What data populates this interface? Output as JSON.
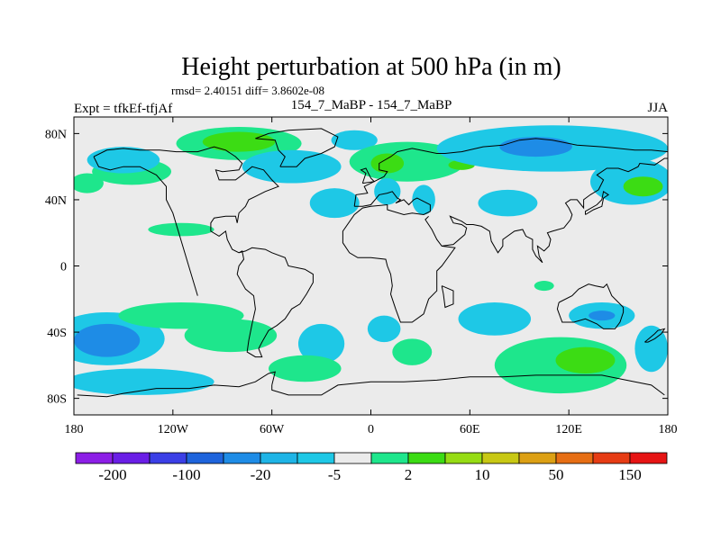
{
  "title": "Height perturbation at 500 hPa (in m)",
  "stats_line": "rmsd= 2.40151 diff= 3.8602e-08",
  "left_label": "Expt = tfkEf-tfjAf",
  "center_label": "154_7_MaBP - 154_7_MaBP",
  "right_label": "JJA",
  "projection": "cylindrical-equidistant",
  "lon_range": [
    -180,
    180
  ],
  "lat_range": [
    -90,
    90
  ],
  "x_ticks": [
    {
      "lon": -180,
      "label": "180"
    },
    {
      "lon": -120,
      "label": "120W"
    },
    {
      "lon": -60,
      "label": "60W"
    },
    {
      "lon": 0,
      "label": "0"
    },
    {
      "lon": 60,
      "label": "60E"
    },
    {
      "lon": 120,
      "label": "120E"
    },
    {
      "lon": 180,
      "label": "180"
    }
  ],
  "y_ticks": [
    {
      "lat": 80,
      "label": "80N"
    },
    {
      "lat": 40,
      "label": "40N"
    },
    {
      "lat": 0,
      "label": "0"
    },
    {
      "lat": -40,
      "label": "40S"
    },
    {
      "lat": -80,
      "label": "80S"
    }
  ],
  "colorbar": {
    "colors": [
      "#8c1ee6",
      "#6a1ee6",
      "#3b3fe6",
      "#1e64dc",
      "#1e8ce6",
      "#1eb4e6",
      "#1ec8e6",
      "#ebebeb",
      "#1ee68c",
      "#3cdc14",
      "#96dc14",
      "#c8c814",
      "#dca014",
      "#e66e14",
      "#e63c14",
      "#e61414"
    ],
    "labels": [
      {
        "after_box": 1,
        "text": "-200"
      },
      {
        "after_box": 3,
        "text": "-100"
      },
      {
        "after_box": 5,
        "text": "-20"
      },
      {
        "after_box": 7,
        "text": "-5"
      },
      {
        "after_box": 9,
        "text": "2"
      },
      {
        "after_box": 11,
        "text": "10"
      },
      {
        "after_box": 13,
        "text": "50"
      },
      {
        "after_box": 15,
        "text": "150"
      }
    ]
  },
  "field_colors": {
    "background": "#ebebeb",
    "weak_negative": "#1ec8e6",
    "weak_positive": "#1ee68c",
    "moderate_positive": "#3cdc14",
    "moderate_negative": "#1e8ce6",
    "coastline": "#000000"
  },
  "anomaly_regions": [
    {
      "level": "weak_positive",
      "lon": -145,
      "lat": 57,
      "rx_deg": 24,
      "ry_deg": 8
    },
    {
      "level": "weak_negative",
      "lon": -150,
      "lat": 64,
      "rx_deg": 22,
      "ry_deg": 8
    },
    {
      "level": "weak_positive",
      "lon": -80,
      "lat": 74,
      "rx_deg": 38,
      "ry_deg": 10
    },
    {
      "level": "moderate_positive",
      "lon": -80,
      "lat": 75,
      "rx_deg": 22,
      "ry_deg": 6
    },
    {
      "level": "weak_negative",
      "lon": -48,
      "lat": 60,
      "rx_deg": 30,
      "ry_deg": 10
    },
    {
      "level": "weak_negative",
      "lon": -10,
      "lat": 76,
      "rx_deg": 14,
      "ry_deg": 6
    },
    {
      "level": "weak_positive",
      "lon": 22,
      "lat": 63,
      "rx_deg": 35,
      "ry_deg": 12
    },
    {
      "level": "moderate_positive",
      "lon": 10,
      "lat": 62,
      "rx_deg": 10,
      "ry_deg": 6
    },
    {
      "level": "moderate_positive",
      "lon": 55,
      "lat": 61,
      "rx_deg": 8,
      "ry_deg": 3
    },
    {
      "level": "weak_negative",
      "lon": 110,
      "lat": 71,
      "rx_deg": 70,
      "ry_deg": 14
    },
    {
      "level": "moderate_negative",
      "lon": 100,
      "lat": 72,
      "rx_deg": 22,
      "ry_deg": 6
    },
    {
      "level": "weak_negative",
      "lon": 158,
      "lat": 51,
      "rx_deg": 25,
      "ry_deg": 14
    },
    {
      "level": "moderate_positive",
      "lon": 165,
      "lat": 48,
      "rx_deg": 12,
      "ry_deg": 6
    },
    {
      "level": "weak_positive",
      "lon": -172,
      "lat": 50,
      "rx_deg": 10,
      "ry_deg": 6
    },
    {
      "level": "weak_negative",
      "lon": -22,
      "lat": 38,
      "rx_deg": 15,
      "ry_deg": 9
    },
    {
      "level": "weak_negative",
      "lon": 10,
      "lat": 45,
      "rx_deg": 8,
      "ry_deg": 8
    },
    {
      "level": "weak_negative",
      "lon": 32,
      "lat": 40,
      "rx_deg": 7,
      "ry_deg": 9
    },
    {
      "level": "weak_negative",
      "lon": 83,
      "lat": 38,
      "rx_deg": 18,
      "ry_deg": 8
    },
    {
      "level": "weak_positive",
      "lon": -115,
      "lat": 22,
      "rx_deg": 20,
      "ry_deg": 4
    },
    {
      "level": "weak_positive",
      "lon": 105,
      "lat": -12,
      "rx_deg": 6,
      "ry_deg": 3
    },
    {
      "level": "weak_negative",
      "lon": -160,
      "lat": -44,
      "rx_deg": 35,
      "ry_deg": 16
    },
    {
      "level": "moderate_negative",
      "lon": -160,
      "lat": -45,
      "rx_deg": 20,
      "ry_deg": 10
    },
    {
      "level": "weak_positive",
      "lon": -115,
      "lat": -30,
      "rx_deg": 38,
      "ry_deg": 8
    },
    {
      "level": "weak_positive",
      "lon": -85,
      "lat": -42,
      "rx_deg": 28,
      "ry_deg": 10
    },
    {
      "level": "weak_negative",
      "lon": -140,
      "lat": -70,
      "rx_deg": 45,
      "ry_deg": 8
    },
    {
      "level": "weak_negative",
      "lon": -30,
      "lat": -47,
      "rx_deg": 14,
      "ry_deg": 12
    },
    {
      "level": "weak_positive",
      "lon": -40,
      "lat": -62,
      "rx_deg": 22,
      "ry_deg": 8
    },
    {
      "level": "weak_negative",
      "lon": 8,
      "lat": -38,
      "rx_deg": 10,
      "ry_deg": 8
    },
    {
      "level": "weak_positive",
      "lon": 25,
      "lat": -52,
      "rx_deg": 12,
      "ry_deg": 8
    },
    {
      "level": "weak_negative",
      "lon": 75,
      "lat": -32,
      "rx_deg": 22,
      "ry_deg": 10
    },
    {
      "level": "weak_negative",
      "lon": 140,
      "lat": -30,
      "rx_deg": 20,
      "ry_deg": 8
    },
    {
      "level": "moderate_negative",
      "lon": 140,
      "lat": -30,
      "rx_deg": 8,
      "ry_deg": 3
    },
    {
      "level": "weak_positive",
      "lon": 115,
      "lat": -60,
      "rx_deg": 40,
      "ry_deg": 17
    },
    {
      "level": "moderate_positive",
      "lon": 130,
      "lat": -57,
      "rx_deg": 18,
      "ry_deg": 8
    },
    {
      "level": "weak_negative",
      "lon": 170,
      "lat": -50,
      "rx_deg": 10,
      "ry_deg": 14
    }
  ],
  "coastlines": [
    [
      [
        -168,
        66
      ],
      [
        -160,
        70
      ],
      [
        -150,
        71
      ],
      [
        -140,
        70
      ],
      [
        -128,
        70
      ],
      [
        -118,
        69
      ],
      [
        -105,
        69
      ],
      [
        -95,
        72
      ],
      [
        -88,
        70
      ],
      [
        -82,
        66
      ],
      [
        -78,
        62
      ],
      [
        -80,
        58
      ],
      [
        -90,
        57
      ],
      [
        -94,
        58
      ],
      [
        -92,
        52
      ],
      [
        -82,
        52
      ],
      [
        -78,
        55
      ],
      [
        -72,
        60
      ],
      [
        -65,
        58
      ],
      [
        -60,
        52
      ],
      [
        -56,
        48
      ],
      [
        -64,
        45
      ],
      [
        -70,
        42
      ],
      [
        -74,
        40
      ],
      [
        -76,
        36
      ],
      [
        -80,
        32
      ],
      [
        -81,
        26
      ],
      [
        -82,
        30
      ],
      [
        -88,
        30
      ],
      [
        -95,
        29
      ],
      [
        -97,
        26
      ],
      [
        -97,
        21
      ],
      [
        -92,
        18
      ],
      [
        -88,
        21
      ],
      [
        -87,
        16
      ],
      [
        -84,
        10
      ],
      [
        -80,
        8
      ],
      [
        -78,
        9
      ],
      [
        -77,
        4
      ],
      [
        -80,
        0
      ],
      [
        -81,
        -5
      ],
      [
        -76,
        -14
      ],
      [
        -71,
        -18
      ],
      [
        -70,
        -26
      ],
      [
        -72,
        -35
      ],
      [
        -74,
        -45
      ],
      [
        -75,
        -52
      ],
      [
        -70,
        -55
      ],
      [
        -66,
        -55
      ],
      [
        -68,
        -50
      ],
      [
        -66,
        -46
      ],
      [
        -62,
        -39
      ],
      [
        -57,
        -36
      ],
      [
        -52,
        -32
      ],
      [
        -48,
        -26
      ],
      [
        -43,
        -23
      ],
      [
        -39,
        -17
      ],
      [
        -35,
        -10
      ],
      [
        -35,
        -5
      ],
      [
        -40,
        -2
      ],
      [
        -50,
        0
      ],
      [
        -52,
        5
      ],
      [
        -60,
        8
      ],
      [
        -64,
        10
      ],
      [
        -72,
        11
      ],
      [
        -76,
        9
      ],
      [
        -80,
        8
      ]
    ],
    [
      [
        -105,
        -18
      ],
      [
        -120,
        32
      ],
      [
        -124,
        40
      ],
      [
        -124,
        48
      ],
      [
        -130,
        55
      ],
      [
        -140,
        60
      ],
      [
        -150,
        60
      ],
      [
        -158,
        58
      ],
      [
        -165,
        60
      ],
      [
        -168,
        66
      ]
    ],
    [
      [
        -55,
        60
      ],
      [
        -45,
        60
      ],
      [
        -40,
        65
      ],
      [
        -30,
        68
      ],
      [
        -22,
        72
      ],
      [
        -20,
        78
      ],
      [
        -30,
        83
      ],
      [
        -50,
        82
      ],
      [
        -62,
        80
      ],
      [
        -70,
        77
      ],
      [
        -58,
        76
      ],
      [
        -56,
        70
      ],
      [
        -52,
        66
      ],
      [
        -55,
        60
      ]
    ],
    [
      [
        -10,
        36
      ],
      [
        -9,
        43
      ],
      [
        -2,
        44
      ],
      [
        -4,
        48
      ],
      [
        2,
        51
      ],
      [
        8,
        54
      ],
      [
        10,
        57
      ],
      [
        5,
        58
      ],
      [
        5,
        62
      ],
      [
        12,
        66
      ],
      [
        16,
        69
      ],
      [
        25,
        71
      ],
      [
        30,
        70
      ],
      [
        40,
        68
      ],
      [
        45,
        68
      ],
      [
        55,
        69
      ],
      [
        68,
        72
      ],
      [
        80,
        73
      ],
      [
        90,
        76
      ],
      [
        100,
        77
      ],
      [
        110,
        76
      ],
      [
        125,
        73
      ],
      [
        140,
        72
      ],
      [
        150,
        71
      ],
      [
        160,
        70
      ],
      [
        170,
        70
      ],
      [
        180,
        69
      ]
    ],
    [
      [
        -10,
        36
      ],
      [
        -5,
        36
      ],
      [
        0,
        37
      ],
      [
        5,
        43
      ],
      [
        10,
        44
      ],
      [
        13,
        45
      ],
      [
        16,
        41
      ],
      [
        18,
        40
      ],
      [
        15,
        38
      ],
      [
        20,
        40
      ],
      [
        23,
        37
      ],
      [
        26,
        40
      ],
      [
        28,
        41
      ],
      [
        36,
        37
      ],
      [
        36,
        33
      ],
      [
        32,
        31
      ],
      [
        25,
        32
      ],
      [
        20,
        31
      ],
      [
        10,
        34
      ],
      [
        10,
        37
      ],
      [
        0,
        36
      ],
      [
        -5,
        35
      ],
      [
        -10,
        31
      ],
      [
        -17,
        21
      ],
      [
        -17,
        14
      ],
      [
        -13,
        8
      ],
      [
        -8,
        5
      ],
      [
        0,
        5
      ],
      [
        9,
        4
      ],
      [
        10,
        0
      ],
      [
        12,
        -5
      ],
      [
        13,
        -12
      ],
      [
        12,
        -17
      ],
      [
        15,
        -26
      ],
      [
        18,
        -34
      ],
      [
        25,
        -34
      ],
      [
        32,
        -29
      ],
      [
        35,
        -20
      ],
      [
        40,
        -15
      ],
      [
        40,
        -8
      ],
      [
        40,
        -3
      ],
      [
        43,
        0
      ],
      [
        51,
        11
      ],
      [
        43,
        12
      ],
      [
        40,
        16
      ],
      [
        37,
        22
      ],
      [
        33,
        28
      ],
      [
        35,
        30
      ]
    ],
    [
      [
        43,
        12
      ],
      [
        50,
        13
      ],
      [
        57,
        19
      ],
      [
        58,
        23
      ],
      [
        55,
        25
      ],
      [
        50,
        26
      ],
      [
        48,
        30
      ],
      [
        55,
        27
      ],
      [
        58,
        25
      ],
      [
        62,
        25
      ],
      [
        67,
        24
      ],
      [
        72,
        21
      ],
      [
        73,
        15
      ],
      [
        77,
        8
      ],
      [
        80,
        12
      ],
      [
        80,
        16
      ],
      [
        87,
        21
      ],
      [
        92,
        22
      ],
      [
        94,
        18
      ],
      [
        98,
        16
      ],
      [
        98,
        10
      ],
      [
        100,
        6
      ],
      [
        104,
        2
      ],
      [
        102,
        6
      ],
      [
        101,
        12
      ],
      [
        105,
        9
      ],
      [
        108,
        12
      ],
      [
        109,
        16
      ],
      [
        107,
        20
      ],
      [
        110,
        21
      ],
      [
        117,
        23
      ],
      [
        121,
        28
      ],
      [
        122,
        31
      ],
      [
        120,
        35
      ],
      [
        118,
        38
      ],
      [
        121,
        40
      ],
      [
        125,
        40
      ],
      [
        129,
        35
      ],
      [
        129,
        40
      ],
      [
        133,
        43
      ],
      [
        138,
        46
      ],
      [
        141,
        52
      ],
      [
        137,
        55
      ],
      [
        143,
        59
      ],
      [
        150,
        59
      ],
      [
        156,
        57
      ],
      [
        162,
        60
      ],
      [
        163,
        62
      ],
      [
        172,
        61
      ],
      [
        178,
        65
      ],
      [
        180,
        65
      ]
    ],
    [
      [
        114,
        -22
      ],
      [
        113,
        -26
      ],
      [
        116,
        -34
      ],
      [
        123,
        -34
      ],
      [
        130,
        -32
      ],
      [
        137,
        -35
      ],
      [
        141,
        -38
      ],
      [
        148,
        -38
      ],
      [
        151,
        -34
      ],
      [
        153,
        -28
      ],
      [
        153,
        -25
      ],
      [
        146,
        -18
      ],
      [
        143,
        -11
      ],
      [
        141,
        -13
      ],
      [
        136,
        -12
      ],
      [
        132,
        -11
      ],
      [
        126,
        -14
      ],
      [
        122,
        -18
      ],
      [
        114,
        -22
      ]
    ],
    [
      [
        -60,
        -72
      ],
      [
        -60,
        -75
      ],
      [
        -50,
        -78
      ],
      [
        -30,
        -78
      ],
      [
        -20,
        -72
      ],
      [
        0,
        -70
      ],
      [
        20,
        -70
      ],
      [
        40,
        -69
      ],
      [
        60,
        -67
      ],
      [
        80,
        -67
      ],
      [
        100,
        -66
      ],
      [
        120,
        -66
      ],
      [
        140,
        -66
      ],
      [
        160,
        -70
      ],
      [
        170,
        -72
      ],
      [
        178,
        -78
      ]
    ],
    [
      [
        -178,
        -78
      ],
      [
        -160,
        -79
      ],
      [
        -150,
        -77
      ],
      [
        -130,
        -74
      ],
      [
        -110,
        -74
      ],
      [
        -95,
        -72
      ],
      [
        -80,
        -73
      ],
      [
        -70,
        -70
      ],
      [
        -62,
        -65
      ],
      [
        -58,
        -64
      ],
      [
        -60,
        -72
      ]
    ],
    [
      [
        -5,
        50
      ],
      [
        -3,
        56
      ],
      [
        -6,
        58
      ],
      [
        -3,
        59
      ],
      [
        0,
        53
      ],
      [
        2,
        51
      ],
      [
        -5,
        50
      ]
    ],
    [
      [
        130,
        31
      ],
      [
        135,
        34
      ],
      [
        140,
        36
      ],
      [
        141,
        41
      ],
      [
        144,
        43
      ],
      [
        141,
        45
      ],
      [
        140,
        40
      ],
      [
        137,
        37
      ],
      [
        130,
        33
      ],
      [
        130,
        31
      ]
    ],
    [
      [
        43,
        -12
      ],
      [
        50,
        -15
      ],
      [
        50,
        -23
      ],
      [
        45,
        -25
      ],
      [
        44,
        -17
      ],
      [
        43,
        -12
      ]
    ],
    [
      [
        166,
        -46
      ],
      [
        172,
        -41
      ],
      [
        174,
        -39
      ],
      [
        178,
        -38
      ],
      [
        176,
        -41
      ],
      [
        172,
        -44
      ],
      [
        168,
        -46
      ],
      [
        166,
        -46
      ]
    ]
  ]
}
